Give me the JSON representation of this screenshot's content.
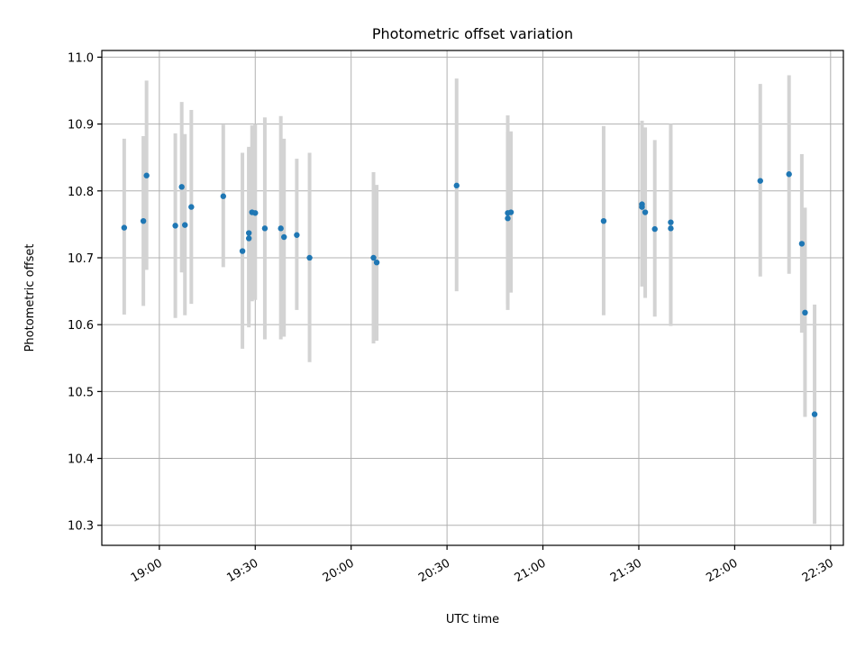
{
  "chart_data": {
    "type": "scatter",
    "title": "Photometric offset variation",
    "xlabel": "UTC time",
    "ylabel": "Photometric offset",
    "x_axis": {
      "format": "HH:MM",
      "range": [
        "18:42",
        "22:34"
      ],
      "ticks": [
        "19:00",
        "19:30",
        "20:00",
        "20:30",
        "21:00",
        "21:30",
        "22:00",
        "22:30"
      ]
    },
    "y_axis": {
      "range": [
        10.27,
        11.01
      ],
      "ticks": [
        "10.3",
        "10.4",
        "10.5",
        "10.6",
        "10.7",
        "10.8",
        "10.9",
        "11.0"
      ]
    },
    "grid": true,
    "colors": {
      "marker": "#1f77b4",
      "errorbar": "#d3d3d3",
      "grid": "#b0b0b0"
    },
    "series": [
      {
        "points": [
          {
            "x": "18:49",
            "y": 10.745,
            "lo": 10.615,
            "hi": 10.878
          },
          {
            "x": "18:55",
            "y": 10.755,
            "lo": 10.628,
            "hi": 10.882
          },
          {
            "x": "18:56",
            "y": 10.823,
            "lo": 10.682,
            "hi": 10.965
          },
          {
            "x": "19:05",
            "y": 10.748,
            "lo": 10.61,
            "hi": 10.886
          },
          {
            "x": "19:07",
            "y": 10.806,
            "lo": 10.678,
            "hi": 10.933
          },
          {
            "x": "19:08",
            "y": 10.749,
            "lo": 10.614,
            "hi": 10.885
          },
          {
            "x": "19:10",
            "y": 10.776,
            "lo": 10.631,
            "hi": 10.921
          },
          {
            "x": "19:20",
            "y": 10.792,
            "lo": 10.686,
            "hi": 10.899
          },
          {
            "x": "19:26",
            "y": 10.71,
            "lo": 10.564,
            "hi": 10.857
          },
          {
            "x": "19:28",
            "y": 10.737,
            "lo": 10.605,
            "hi": 10.864
          },
          {
            "x": "19:28",
            "y": 10.729,
            "lo": 10.596,
            "hi": 10.866
          },
          {
            "x": "19:29",
            "y": 10.768,
            "lo": 10.635,
            "hi": 10.898
          },
          {
            "x": "19:30",
            "y": 10.767,
            "lo": 10.637,
            "hi": 10.9
          },
          {
            "x": "19:33",
            "y": 10.744,
            "lo": 10.578,
            "hi": 10.91
          },
          {
            "x": "19:38",
            "y": 10.744,
            "lo": 10.578,
            "hi": 10.912
          },
          {
            "x": "19:39",
            "y": 10.731,
            "lo": 10.582,
            "hi": 10.878
          },
          {
            "x": "19:43",
            "y": 10.734,
            "lo": 10.622,
            "hi": 10.848
          },
          {
            "x": "19:47",
            "y": 10.7,
            "lo": 10.544,
            "hi": 10.857
          },
          {
            "x": "20:07",
            "y": 10.7,
            "lo": 10.572,
            "hi": 10.828
          },
          {
            "x": "20:08",
            "y": 10.693,
            "lo": 10.576,
            "hi": 10.809
          },
          {
            "x": "20:33",
            "y": 10.808,
            "lo": 10.65,
            "hi": 10.968
          },
          {
            "x": "20:49",
            "y": 10.767,
            "lo": 10.622,
            "hi": 10.913
          },
          {
            "x": "20:49",
            "y": 10.759,
            "lo": 10.63,
            "hi": 10.888
          },
          {
            "x": "20:50",
            "y": 10.768,
            "lo": 10.648,
            "hi": 10.889
          },
          {
            "x": "21:19",
            "y": 10.755,
            "lo": 10.614,
            "hi": 10.897
          },
          {
            "x": "21:31",
            "y": 10.78,
            "lo": 10.657,
            "hi": 10.905
          },
          {
            "x": "21:31",
            "y": 10.776,
            "lo": 10.665,
            "hi": 10.9
          },
          {
            "x": "21:32",
            "y": 10.768,
            "lo": 10.64,
            "hi": 10.895
          },
          {
            "x": "21:35",
            "y": 10.743,
            "lo": 10.612,
            "hi": 10.876
          },
          {
            "x": "21:40",
            "y": 10.753,
            "lo": 10.603,
            "hi": 10.9
          },
          {
            "x": "21:40",
            "y": 10.744,
            "lo": 10.598,
            "hi": 10.891
          },
          {
            "x": "22:08",
            "y": 10.815,
            "lo": 10.672,
            "hi": 10.96
          },
          {
            "x": "22:17",
            "y": 10.825,
            "lo": 10.676,
            "hi": 10.973
          },
          {
            "x": "22:21",
            "y": 10.721,
            "lo": 10.588,
            "hi": 10.855
          },
          {
            "x": "22:22",
            "y": 10.618,
            "lo": 10.462,
            "hi": 10.775
          },
          {
            "x": "22:25",
            "y": 10.466,
            "lo": 10.302,
            "hi": 10.63
          }
        ]
      }
    ]
  }
}
